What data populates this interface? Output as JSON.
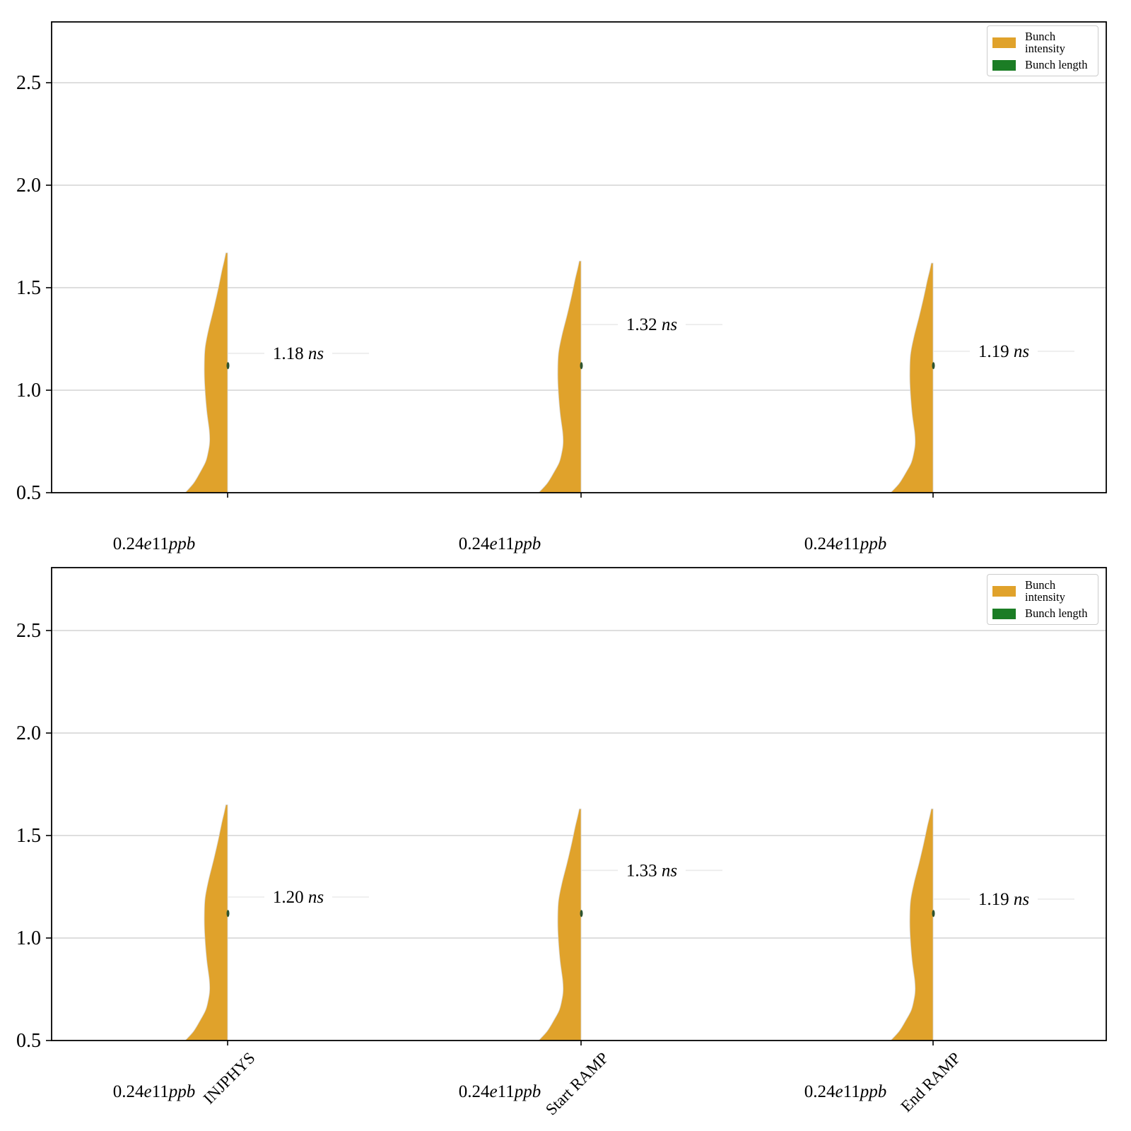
{
  "figure": {
    "background": "#ffffff",
    "title": ""
  },
  "colors": {
    "bunch_intensity": "#E0A22B",
    "bunch_length": "#1B7D25",
    "bunch_length_marker": "#2E5430",
    "gridline": "#c9c9c9",
    "annotation_line": "#ebebeb",
    "spine": "#000000",
    "text": "#000000"
  },
  "legend": {
    "position": "upper right",
    "intensity_label": "Bunch intensity",
    "length_label": "Bunch length"
  },
  "chart_data": [
    {
      "type": "violin",
      "subplot": "top",
      "orientation": "vertical-half",
      "title": "",
      "xlabel": "",
      "ylabel": "",
      "ylim": [
        0.5,
        2.8
      ],
      "yticks": [
        0.5,
        1.0,
        1.5,
        2.0,
        2.5
      ],
      "grid": "horizontal",
      "legend": {
        "position": "upper right",
        "entries": [
          {
            "label": "Bunch intensity",
            "color": "#E0A22B"
          },
          {
            "label": "Bunch length",
            "color": "#1B7D25"
          }
        ]
      },
      "groups": [
        {
          "stage": "",
          "intensity_label": "0.24e11ppb",
          "intensity_ppb_e11": 0.24,
          "bunch_length_ns": 1.18,
          "bunch_length_unit": "ns",
          "violin_top": 1.67
        },
        {
          "stage": "",
          "intensity_label": "0.24e11ppb",
          "intensity_ppb_e11": 0.24,
          "bunch_length_ns": 1.32,
          "bunch_length_unit": "ns",
          "violin_top": 1.63
        },
        {
          "stage": "",
          "intensity_label": "0.24e11ppb",
          "intensity_ppb_e11": 0.24,
          "bunch_length_ns": 1.19,
          "bunch_length_unit": "ns",
          "violin_top": 1.62
        }
      ]
    },
    {
      "type": "violin",
      "subplot": "bottom",
      "orientation": "vertical-half",
      "title": "",
      "xlabel": "",
      "ylabel": "",
      "ylim": [
        0.5,
        2.8
      ],
      "yticks": [
        0.5,
        1.0,
        1.5,
        2.0,
        2.5
      ],
      "grid": "horizontal",
      "legend": {
        "position": "upper right",
        "entries": [
          {
            "label": "Bunch intensity",
            "color": "#E0A22B"
          },
          {
            "label": "Bunch length",
            "color": "#1B7D25"
          }
        ]
      },
      "groups": [
        {
          "stage": "INJPHYS",
          "intensity_label": "0.24e11ppb",
          "intensity_ppb_e11": 0.24,
          "bunch_length_ns": 1.2,
          "bunch_length_unit": "ns",
          "violin_top": 1.65
        },
        {
          "stage": "Start RAMP",
          "intensity_label": "0.24e11ppb",
          "intensity_ppb_e11": 0.24,
          "bunch_length_ns": 1.33,
          "bunch_length_unit": "ns",
          "violin_top": 1.63
        },
        {
          "stage": "End RAMP",
          "intensity_label": "0.24e11ppb",
          "intensity_ppb_e11": 0.24,
          "bunch_length_ns": 1.19,
          "bunch_length_unit": "ns",
          "violin_top": 1.63
        }
      ]
    }
  ],
  "violin_profile": [
    [
      0.0,
      60
    ],
    [
      0.04,
      48
    ],
    [
      0.09,
      38
    ],
    [
      0.13,
      31
    ],
    [
      0.17,
      27.5
    ],
    [
      0.21,
      25.5
    ],
    [
      0.26,
      26
    ],
    [
      0.34,
      29.5
    ],
    [
      0.43,
      32
    ],
    [
      0.51,
      33
    ],
    [
      0.6,
      32
    ],
    [
      0.68,
      27
    ],
    [
      0.77,
      19.5
    ],
    [
      0.855,
      13
    ],
    [
      0.92,
      8.5
    ],
    [
      0.965,
      5
    ],
    [
      1.0,
      2.5
    ]
  ],
  "bunch_length_marker_value": 1.12
}
